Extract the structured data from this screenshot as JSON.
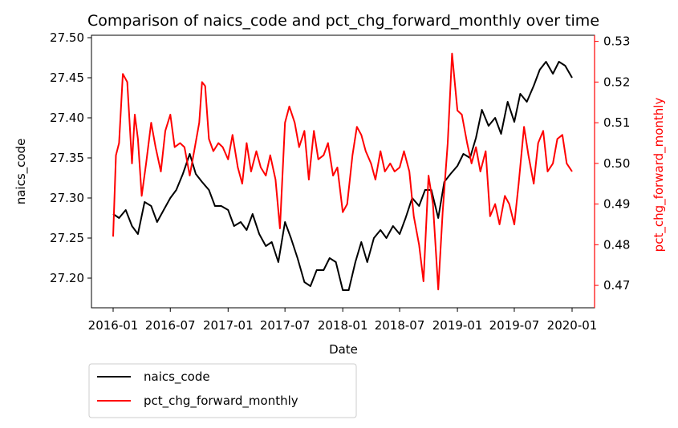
{
  "chart_data": {
    "type": "line",
    "title": "Comparison of naics_code and pct_chg_forward_monthly over time",
    "xlabel": "Date",
    "ylabel_left": "naics_code",
    "ylabel_right": "pct_chg_forward_monthly",
    "x_range": [
      "2016-01",
      "2020-01"
    ],
    "x_ticks": [
      "2016-01",
      "2016-07",
      "2017-01",
      "2017-07",
      "2018-01",
      "2018-07",
      "2019-01",
      "2019-07",
      "2020-01"
    ],
    "y_left_range": [
      27.163,
      27.503
    ],
    "y_left_ticks": [
      "27.20",
      "27.25",
      "27.30",
      "27.35",
      "27.40",
      "27.45",
      "27.50"
    ],
    "y_right_range": [
      0.4645,
      0.5315
    ],
    "y_right_ticks": [
      "0.47",
      "0.48",
      "0.49",
      "0.50",
      "0.51",
      "0.52",
      "0.53"
    ],
    "grid": false,
    "legend_position": "below-left",
    "colors": {
      "naics_code": "#000000",
      "pct_chg_forward_monthly": "#ff0000",
      "right_axis": "#ff0000"
    },
    "series": [
      {
        "name": "naics_code",
        "axis": "left",
        "x": [
          "2016-01-01",
          "2016-01-20",
          "2016-02-10",
          "2016-03-01",
          "2016-03-20",
          "2016-04-10",
          "2016-05-01",
          "2016-05-20",
          "2016-06-10",
          "2016-07-01",
          "2016-07-20",
          "2016-08-10",
          "2016-09-01",
          "2016-09-20",
          "2016-10-10",
          "2016-11-01",
          "2016-11-20",
          "2016-12-10",
          "2017-01-01",
          "2017-01-20",
          "2017-02-10",
          "2017-03-01",
          "2017-03-20",
          "2017-04-10",
          "2017-05-01",
          "2017-05-20",
          "2017-06-10",
          "2017-07-01",
          "2017-07-20",
          "2017-08-10",
          "2017-09-01",
          "2017-09-20",
          "2017-10-10",
          "2017-11-01",
          "2017-11-20",
          "2017-12-10",
          "2018-01-01",
          "2018-01-20",
          "2018-02-10",
          "2018-03-01",
          "2018-03-20",
          "2018-04-10",
          "2018-05-01",
          "2018-05-20",
          "2018-06-10",
          "2018-07-01",
          "2018-07-20",
          "2018-08-10",
          "2018-09-01",
          "2018-09-20",
          "2018-10-10",
          "2018-11-01",
          "2018-11-20",
          "2018-12-10",
          "2019-01-01",
          "2019-01-20",
          "2019-02-10",
          "2019-03-01",
          "2019-03-20",
          "2019-04-10",
          "2019-05-01",
          "2019-05-20",
          "2019-06-10",
          "2019-07-01",
          "2019-07-20",
          "2019-08-10",
          "2019-09-01",
          "2019-09-20",
          "2019-10-10",
          "2019-11-01",
          "2019-11-20",
          "2019-12-10",
          "2020-01-01"
        ],
        "values": [
          27.28,
          27.275,
          27.285,
          27.265,
          27.255,
          27.295,
          27.29,
          27.27,
          27.285,
          27.3,
          27.31,
          27.33,
          27.355,
          27.33,
          27.32,
          27.31,
          27.29,
          27.29,
          27.285,
          27.265,
          27.27,
          27.26,
          27.28,
          27.255,
          27.24,
          27.245,
          27.22,
          27.27,
          27.25,
          27.225,
          27.195,
          27.19,
          27.21,
          27.21,
          27.225,
          27.22,
          27.185,
          27.185,
          27.22,
          27.245,
          27.22,
          27.25,
          27.26,
          27.25,
          27.265,
          27.255,
          27.275,
          27.3,
          27.29,
          27.31,
          27.31,
          27.275,
          27.32,
          27.33,
          27.34,
          27.355,
          27.35,
          27.375,
          27.41,
          27.39,
          27.4,
          27.38,
          27.42,
          27.395,
          27.43,
          27.42,
          27.44,
          27.46,
          27.47,
          27.455,
          27.47,
          27.465,
          27.45
        ]
      },
      {
        "name": "pct_chg_forward_monthly",
        "axis": "right",
        "x": [
          "2016-01-01",
          "2016-01-10",
          "2016-01-20",
          "2016-02-01",
          "2016-02-15",
          "2016-03-01",
          "2016-03-10",
          "2016-03-20",
          "2016-04-01",
          "2016-04-15",
          "2016-05-01",
          "2016-05-15",
          "2016-06-01",
          "2016-06-15",
          "2016-07-01",
          "2016-07-15",
          "2016-08-01",
          "2016-08-15",
          "2016-09-01",
          "2016-09-15",
          "2016-10-01",
          "2016-10-10",
          "2016-10-20",
          "2016-11-01",
          "2016-11-15",
          "2016-12-01",
          "2016-12-15",
          "2017-01-01",
          "2017-01-15",
          "2017-02-01",
          "2017-02-15",
          "2017-03-01",
          "2017-03-15",
          "2017-04-01",
          "2017-04-15",
          "2017-05-01",
          "2017-05-15",
          "2017-06-01",
          "2017-06-15",
          "2017-07-01",
          "2017-07-15",
          "2017-08-01",
          "2017-08-15",
          "2017-09-01",
          "2017-09-15",
          "2017-10-01",
          "2017-10-15",
          "2017-11-01",
          "2017-11-15",
          "2017-12-01",
          "2017-12-15",
          "2018-01-01",
          "2018-01-15",
          "2018-02-01",
          "2018-02-15",
          "2018-03-01",
          "2018-03-15",
          "2018-04-01",
          "2018-04-15",
          "2018-05-01",
          "2018-05-15",
          "2018-06-01",
          "2018-06-15",
          "2018-07-01",
          "2018-07-15",
          "2018-08-01",
          "2018-08-15",
          "2018-09-01",
          "2018-09-15",
          "2018-10-01",
          "2018-10-15",
          "2018-11-01",
          "2018-11-15",
          "2018-12-01",
          "2018-12-15",
          "2019-01-01",
          "2019-01-15",
          "2019-02-01",
          "2019-02-15",
          "2019-03-01",
          "2019-03-15",
          "2019-04-01",
          "2019-04-15",
          "2019-05-01",
          "2019-05-15",
          "2019-06-01",
          "2019-06-15",
          "2019-07-01",
          "2019-07-15",
          "2019-08-01",
          "2019-08-15",
          "2019-09-01",
          "2019-09-15",
          "2019-10-01",
          "2019-10-15",
          "2019-11-01",
          "2019-11-15",
          "2019-12-01",
          "2019-12-15",
          "2020-01-01"
        ],
        "values": [
          0.482,
          0.502,
          0.505,
          0.522,
          0.52,
          0.5,
          0.512,
          0.506,
          0.492,
          0.5,
          0.51,
          0.504,
          0.498,
          0.508,
          0.512,
          0.504,
          0.505,
          0.504,
          0.497,
          0.503,
          0.51,
          0.52,
          0.519,
          0.506,
          0.503,
          0.505,
          0.504,
          0.501,
          0.507,
          0.499,
          0.495,
          0.505,
          0.498,
          0.503,
          0.499,
          0.497,
          0.502,
          0.496,
          0.484,
          0.51,
          0.514,
          0.51,
          0.504,
          0.508,
          0.496,
          0.508,
          0.501,
          0.502,
          0.505,
          0.497,
          0.499,
          0.488,
          0.49,
          0.502,
          0.509,
          0.507,
          0.503,
          0.5,
          0.496,
          0.503,
          0.498,
          0.5,
          0.498,
          0.499,
          0.503,
          0.498,
          0.487,
          0.48,
          0.471,
          0.497,
          0.49,
          0.469,
          0.488,
          0.505,
          0.527,
          0.513,
          0.512,
          0.505,
          0.5,
          0.504,
          0.498,
          0.503,
          0.487,
          0.49,
          0.485,
          0.492,
          0.49,
          0.485,
          0.495,
          0.509,
          0.502,
          0.495,
          0.505,
          0.508,
          0.498,
          0.5,
          0.506,
          0.507,
          0.5,
          0.498
        ]
      }
    ]
  }
}
